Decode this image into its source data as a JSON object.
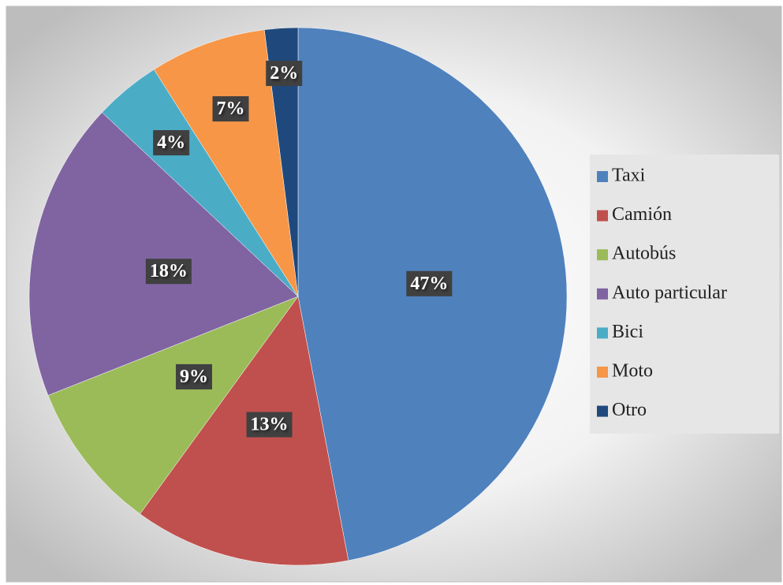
{
  "chart_data": {
    "type": "pie",
    "categories": [
      "Taxi",
      "Camión",
      "Autobús",
      "Auto particular",
      "Bici",
      "Moto",
      "Otro"
    ],
    "values": [
      47,
      13,
      9,
      18,
      4,
      7,
      2
    ],
    "value_labels": [
      "47%",
      "13%",
      "9%",
      "18%",
      "4%",
      "7%",
      "2%"
    ],
    "colors": [
      "#4f81bd",
      "#c0504d",
      "#9bbb59",
      "#8064a2",
      "#4bacc6",
      "#f79646",
      "#1f497d"
    ],
    "legend": "right"
  }
}
